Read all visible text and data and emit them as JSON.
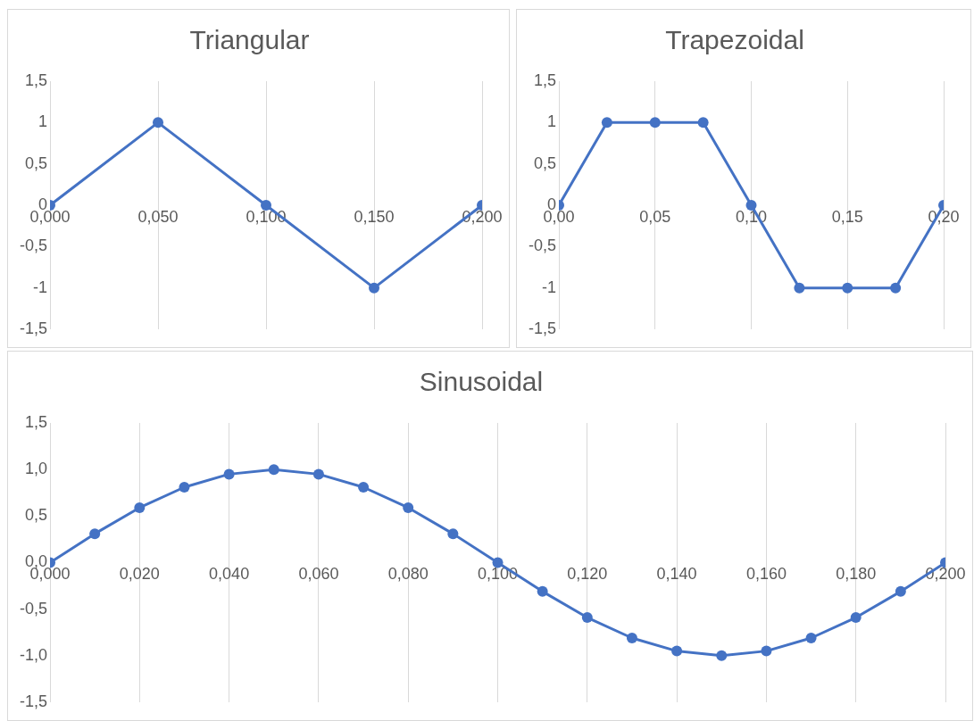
{
  "chart_data": [
    {
      "type": "line",
      "title": "Triangular",
      "x": [
        0,
        0.05,
        0.1,
        0.15,
        0.2
      ],
      "series": [
        {
          "color": "#4472c4",
          "values": [
            0,
            1,
            0,
            -1,
            0
          ]
        }
      ],
      "xlim": [
        0,
        0.2
      ],
      "xticks": [
        {
          "value": 0,
          "label": "0,000"
        },
        {
          "value": 0.05,
          "label": "0,050"
        },
        {
          "value": 0.1,
          "label": "0,100"
        },
        {
          "value": 0.15,
          "label": "0,150"
        },
        {
          "value": 0.2,
          "label": "0,200"
        }
      ],
      "ylim": [
        -1.5,
        1.5
      ],
      "yticks": [
        {
          "value": -1.5,
          "label": "-1,5"
        },
        -1,
        {
          "value": -0.5,
          "label": "-0,5"
        },
        0,
        {
          "value": 0.5,
          "label": "0,5"
        },
        1,
        {
          "value": 1.5,
          "label": "1,5"
        }
      ],
      "grid": "x",
      "marker": "circle",
      "line_style": "solid"
    },
    {
      "type": "line",
      "title": "Trapezoidal",
      "x": [
        0,
        0.025,
        0.05,
        0.075,
        0.1,
        0.125,
        0.15,
        0.175,
        0.2
      ],
      "series": [
        {
          "color": "#4472c4",
          "values": [
            0,
            1,
            1,
            1,
            0,
            -1,
            -1,
            -1,
            0
          ]
        }
      ],
      "xlim": [
        0,
        0.2
      ],
      "xticks": [
        {
          "value": 0,
          "label": "0,00"
        },
        {
          "value": 0.05,
          "label": "0,05"
        },
        {
          "value": 0.1,
          "label": "0,10"
        },
        {
          "value": 0.15,
          "label": "0,15"
        },
        {
          "value": 0.2,
          "label": "0,20"
        }
      ],
      "ylim": [
        -1.5,
        1.5
      ],
      "yticks": [
        {
          "value": -1.5,
          "label": "-1,5"
        },
        -1,
        {
          "value": -0.5,
          "label": "-0,5"
        },
        0,
        {
          "value": 0.5,
          "label": "0,5"
        },
        1,
        {
          "value": 1.5,
          "label": "1,5"
        }
      ],
      "grid": "x",
      "marker": "circle",
      "line_style": "solid"
    },
    {
      "type": "line",
      "title": "Sinusoidal",
      "x": [
        0,
        0.01,
        0.02,
        0.03,
        0.04,
        0.05,
        0.06,
        0.07,
        0.08,
        0.09,
        0.1,
        0.11,
        0.12,
        0.13,
        0.14,
        0.15,
        0.16,
        0.17,
        0.18,
        0.19,
        0.2
      ],
      "series": [
        {
          "color": "#4472c4",
          "values": [
            0,
            0.31,
            0.59,
            0.81,
            0.95,
            1,
            0.95,
            0.81,
            0.59,
            0.31,
            0,
            -0.31,
            -0.59,
            -0.81,
            -0.95,
            -1,
            -0.95,
            -0.81,
            -0.59,
            -0.31,
            0
          ]
        }
      ],
      "xlim": [
        0,
        0.2
      ],
      "xticks": [
        {
          "value": 0,
          "label": "0,000"
        },
        {
          "value": 0.02,
          "label": "0,020"
        },
        {
          "value": 0.04,
          "label": "0,040"
        },
        {
          "value": 0.06,
          "label": "0,060"
        },
        {
          "value": 0.08,
          "label": "0,080"
        },
        {
          "value": 0.1,
          "label": "0,100"
        },
        {
          "value": 0.12,
          "label": "0,120"
        },
        {
          "value": 0.14,
          "label": "0,140"
        },
        {
          "value": 0.16,
          "label": "0,160"
        },
        {
          "value": 0.18,
          "label": "0,180"
        },
        {
          "value": 0.2,
          "label": "0,200"
        }
      ],
      "ylim": [
        -1.5,
        1.5
      ],
      "yticks": [
        {
          "value": -1.5,
          "label": "-1,5"
        },
        {
          "value": -1,
          "label": "-1,0"
        },
        {
          "value": -0.5,
          "label": "-0,5"
        },
        {
          "value": 0,
          "label": "0,0"
        },
        {
          "value": 0.5,
          "label": "0,5"
        },
        {
          "value": 1,
          "label": "1,0"
        },
        {
          "value": 1.5,
          "label": "1,5"
        }
      ],
      "grid": "x",
      "marker": "circle",
      "line_style": "solid"
    }
  ]
}
